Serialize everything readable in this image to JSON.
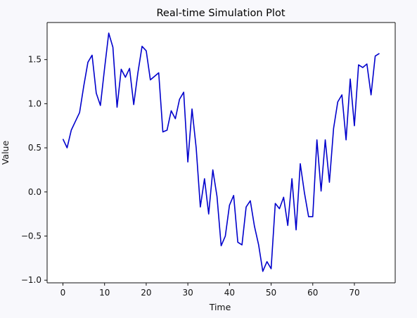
{
  "chart_data": {
    "type": "line",
    "title": "Real-time Simulation Plot",
    "xlabel": "Time",
    "ylabel": "Value",
    "xlim": [
      -3.8,
      79.8
    ],
    "ylim": [
      -1.03,
      1.92
    ],
    "xticks": [
      0,
      10,
      20,
      30,
      40,
      50,
      60,
      70
    ],
    "xtick_labels": [
      "0",
      "10",
      "20",
      "30",
      "40",
      "50",
      "60",
      "70"
    ],
    "yticks": [
      -1.0,
      -0.5,
      0.0,
      0.5,
      1.0,
      1.5
    ],
    "ytick_labels": [
      "−1.0",
      "−0.5",
      "0.0",
      "0.5",
      "1.0",
      "1.5"
    ],
    "grid": false,
    "series": [
      {
        "color": "#0000cc",
        "x": [
          0,
          1,
          2,
          3,
          4,
          5,
          6,
          7,
          8,
          9,
          10,
          11,
          12,
          13,
          14,
          15,
          16,
          17,
          18,
          19,
          20,
          21,
          22,
          23,
          24,
          25,
          26,
          27,
          28,
          29,
          30,
          31,
          32,
          33,
          34,
          35,
          36,
          37,
          38,
          39,
          40,
          41,
          42,
          43,
          44,
          45,
          46,
          47,
          48,
          49,
          50,
          51,
          52,
          53,
          54,
          55,
          56,
          57,
          58,
          59,
          60,
          61,
          62,
          63,
          64,
          65,
          66,
          67,
          68,
          69,
          70,
          71,
          72,
          73,
          74,
          75,
          76
        ],
        "values": [
          0.6,
          0.5,
          0.7,
          0.8,
          0.9,
          1.2,
          1.47,
          1.55,
          1.12,
          0.98,
          1.4,
          1.8,
          1.64,
          0.96,
          1.39,
          1.3,
          1.4,
          0.99,
          1.35,
          1.65,
          1.6,
          1.27,
          1.31,
          1.35,
          0.68,
          0.7,
          0.92,
          0.83,
          1.05,
          1.13,
          0.34,
          0.94,
          0.5,
          -0.17,
          0.15,
          -0.25,
          0.25,
          -0.05,
          -0.61,
          -0.5,
          -0.15,
          -0.04,
          -0.57,
          -0.6,
          -0.17,
          -0.1,
          -0.39,
          -0.6,
          -0.9,
          -0.79,
          -0.87,
          -0.13,
          -0.19,
          -0.06,
          -0.38,
          0.15,
          -0.43,
          0.32,
          -0.01,
          -0.28,
          -0.28,
          0.59,
          0.01,
          0.59,
          0.11,
          0.72,
          1.02,
          1.1,
          0.59,
          1.28,
          0.75,
          1.44,
          1.41,
          1.45,
          1.1,
          1.54,
          1.57
        ]
      }
    ]
  }
}
